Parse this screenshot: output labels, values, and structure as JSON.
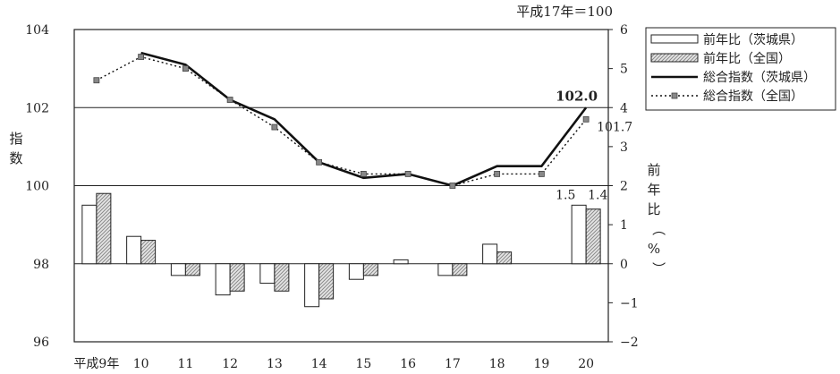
{
  "chart_data": {
    "type": "bar+line",
    "note": "平成17年＝100",
    "categories": [
      "平成9年",
      "10",
      "11",
      "12",
      "13",
      "14",
      "15",
      "16",
      "17",
      "18",
      "19",
      "20"
    ],
    "left_axis": {
      "label": "指数",
      "range": [
        96,
        104
      ],
      "ticks": [
        96,
        98,
        100,
        102,
        104
      ]
    },
    "right_axis": {
      "label": "前年比（%）",
      "range": [
        -2,
        6
      ],
      "ticks": [
        -2,
        -1,
        0,
        1,
        2,
        3,
        4,
        5,
        6
      ]
    },
    "gridlines_left": [
      102,
      100,
      98
    ],
    "series": [
      {
        "name": "前年比（茨城県）",
        "kind": "bar",
        "axis": "right",
        "fill": "#ffffff",
        "values": [
          1.5,
          0.7,
          -0.3,
          -0.8,
          -0.5,
          -1.1,
          -0.4,
          0.1,
          -0.3,
          0.5,
          null,
          1.5
        ]
      },
      {
        "name": "前年比（全国）",
        "kind": "bar",
        "axis": "right",
        "fill": "hatched-gray",
        "values": [
          1.8,
          0.6,
          -0.3,
          -0.7,
          -0.7,
          -0.9,
          -0.3,
          null,
          -0.3,
          0.3,
          null,
          1.4
        ]
      },
      {
        "name": "総合指数（茨城県）",
        "kind": "line",
        "axis": "left",
        "style": "solid",
        "values": [
          null,
          103.4,
          103.1,
          102.2,
          101.7,
          100.6,
          100.2,
          100.3,
          100.0,
          100.5,
          100.5,
          102.0
        ]
      },
      {
        "name": "総合指数（全国）",
        "kind": "line",
        "axis": "left",
        "style": "dotted-squares",
        "values": [
          102.7,
          103.3,
          103.0,
          102.2,
          101.5,
          100.6,
          100.3,
          100.3,
          100.0,
          100.3,
          100.3,
          101.7
        ]
      }
    ],
    "data_labels": [
      {
        "series": "総合指数（茨城県）",
        "text": "102.0",
        "bold": true
      },
      {
        "series": "総合指数（全国）",
        "text": "101.7"
      },
      {
        "series": "前年比（茨城県）",
        "text": "1.5"
      },
      {
        "series": "前年比（全国）",
        "text": "1.4"
      }
    ],
    "legend": {
      "position": "top-right"
    }
  }
}
